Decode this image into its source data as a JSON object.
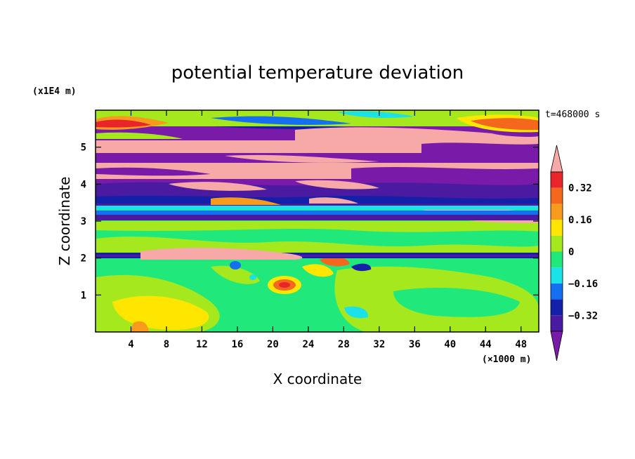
{
  "chart_data": {
    "type": "heatmap",
    "title": "potential temperature deviation",
    "xlabel": "X coordinate",
    "ylabel": "Z coordinate",
    "x_unit": "(×1000 m)",
    "y_unit": "(x1E4 m)",
    "time_label": "t=468000 s",
    "x_ticks": [
      "4",
      "8",
      "12",
      "16",
      "20",
      "24",
      "28",
      "32",
      "36",
      "40",
      "44",
      "48"
    ],
    "y_ticks": [
      "1",
      "2",
      "3",
      "4",
      "5"
    ],
    "xlim": [
      0,
      50
    ],
    "ylim": [
      0,
      6
    ],
    "colorbar": {
      "labels": [
        "0.32",
        "0.16",
        "0",
        "-0.16",
        "-0.32"
      ],
      "label_text": [
        "0.32",
        "0.16",
        "0",
        "−0.16",
        "−0.32"
      ],
      "levels": [
        0.4,
        0.32,
        0.24,
        0.16,
        0.08,
        0,
        -0.08,
        -0.16,
        -0.24,
        -0.32,
        -0.4
      ],
      "colors": [
        "#f7a9a8",
        "#e8262a",
        "#f4681e",
        "#f79a1d",
        "#ffe600",
        "#a5e81e",
        "#21e87a",
        "#1be2e8",
        "#1470f0",
        "#1420a8",
        "#4a1aa0",
        "#7a1aa8"
      ],
      "extend": "both"
    }
  }
}
